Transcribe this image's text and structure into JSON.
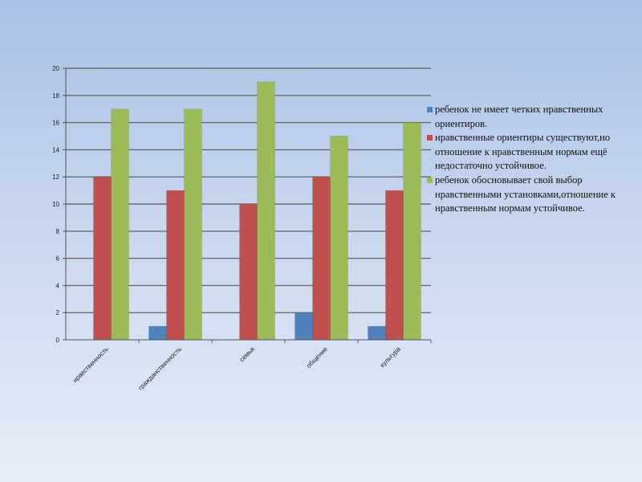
{
  "chart_data": {
    "type": "bar",
    "categories": [
      "нравственность",
      "гражданственность",
      "семья",
      "общение",
      "культура"
    ],
    "series": [
      {
        "name": "ребенок не имеет четких нравственных ориентиров.",
        "color": "#4f81bd",
        "values": [
          0,
          1,
          0,
          2,
          1
        ]
      },
      {
        "name": "нравственные ориентиры существуют,но отношение к нравственным нормам ещё недостаточно устойчивое.",
        "color": "#c0504d",
        "values": [
          12,
          11,
          10,
          12,
          11
        ]
      },
      {
        "name": "ребенок обосновывает свой выбор нравственными установками,отношение к нравственным нормам устойчивое.",
        "color": "#9bbb59",
        "values": [
          17,
          17,
          19,
          15,
          16
        ]
      }
    ],
    "ylim": [
      0,
      20
    ],
    "yticks": [
      0,
      2,
      4,
      6,
      8,
      10,
      12,
      14,
      16,
      18,
      20
    ],
    "grid": true,
    "legend_position": "right"
  }
}
